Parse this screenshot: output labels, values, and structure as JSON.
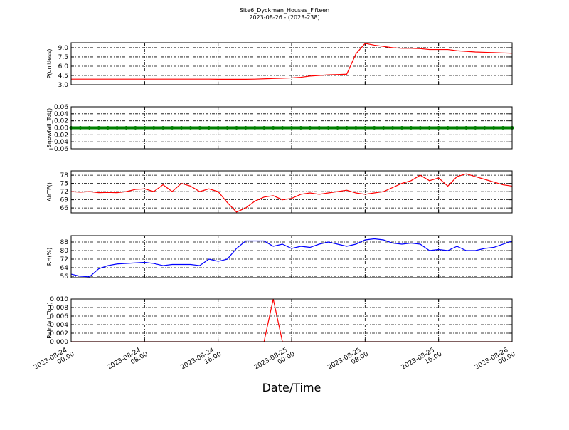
{
  "title": "Site6_Dyckman_Houses_Fifteen",
  "subtitle": "2023-08-26 - (2023-238)",
  "xlabel": "Date/Time",
  "chart_data": [
    {
      "type": "line",
      "ylabel": "P(unitless)",
      "x": [
        "2023-08-24 00:00",
        "2023-08-24 01:00",
        "2023-08-24 02:00",
        "2023-08-24 03:00",
        "2023-08-24 04:00",
        "2023-08-24 05:00",
        "2023-08-24 06:00",
        "2023-08-24 07:00",
        "2023-08-24 08:00",
        "2023-08-24 09:00",
        "2023-08-24 10:00",
        "2023-08-24 11:00",
        "2023-08-24 12:00",
        "2023-08-24 13:00",
        "2023-08-24 14:00",
        "2023-08-24 15:00",
        "2023-08-24 16:00",
        "2023-08-24 17:00",
        "2023-08-24 18:00",
        "2023-08-24 19:00",
        "2023-08-24 20:00",
        "2023-08-24 21:00",
        "2023-08-24 22:00",
        "2023-08-24 23:00",
        "2023-08-25 00:00",
        "2023-08-25 01:00",
        "2023-08-25 02:00",
        "2023-08-25 03:00",
        "2023-08-25 04:00",
        "2023-08-25 05:00",
        "2023-08-25 06:00",
        "2023-08-25 07:00",
        "2023-08-25 08:00",
        "2023-08-25 09:00",
        "2023-08-25 10:00",
        "2023-08-25 11:00",
        "2023-08-25 12:00",
        "2023-08-25 13:00",
        "2023-08-25 14:00",
        "2023-08-25 15:00",
        "2023-08-25 16:00",
        "2023-08-25 17:00",
        "2023-08-25 18:00",
        "2023-08-25 19:00",
        "2023-08-25 20:00",
        "2023-08-25 21:00",
        "2023-08-25 22:00",
        "2023-08-25 23:00",
        "2023-08-26 00:00"
      ],
      "series": [
        {
          "color": "#ff0000",
          "values": [
            3.9,
            3.9,
            3.9,
            3.9,
            3.9,
            3.9,
            3.9,
            3.9,
            3.9,
            3.9,
            3.9,
            3.9,
            3.9,
            3.9,
            3.9,
            3.9,
            3.88,
            3.88,
            3.88,
            3.88,
            3.9,
            3.95,
            4.0,
            4.05,
            4.1,
            4.2,
            4.4,
            4.5,
            4.6,
            4.65,
            4.7,
            8.0,
            9.7,
            9.4,
            9.2,
            9.0,
            8.9,
            8.9,
            8.85,
            8.7,
            8.7,
            8.7,
            8.5,
            8.4,
            8.3,
            8.25,
            8.2,
            8.15,
            8.1
          ]
        }
      ],
      "xlim": [
        "2023-08-24 00:00",
        "2023-08-26 00:00"
      ],
      "xticks": [
        "2023-08-24 00:00",
        "2023-08-24 08:00",
        "2023-08-24 16:00",
        "2023-08-25 00:00",
        "2023-08-25 08:00",
        "2023-08-25 16:00",
        "2023-08-26 00:00"
      ],
      "ylim": [
        3.0,
        9.8
      ],
      "yticks": [
        {
          "value": 3,
          "label": "3.0"
        },
        {
          "value": 4.5,
          "label": "4.5"
        },
        {
          "value": 6,
          "label": "6.0"
        },
        {
          "value": 7.5,
          "label": "7.5"
        },
        {
          "value": 9,
          "label": "9.0"
        }
      ],
      "grid": true
    },
    {
      "type": "line",
      "ylabel": "Snowfall_Tot()",
      "marker": true,
      "x": [
        "2023-08-24 00:00",
        "2023-08-24 01:00",
        "2023-08-24 02:00",
        "2023-08-24 03:00",
        "2023-08-24 04:00",
        "2023-08-24 05:00",
        "2023-08-24 06:00",
        "2023-08-24 07:00",
        "2023-08-24 08:00",
        "2023-08-24 09:00",
        "2023-08-24 10:00",
        "2023-08-24 11:00",
        "2023-08-24 12:00",
        "2023-08-24 13:00",
        "2023-08-24 14:00",
        "2023-08-24 15:00",
        "2023-08-24 16:00",
        "2023-08-24 17:00",
        "2023-08-24 18:00",
        "2023-08-24 19:00",
        "2023-08-24 20:00",
        "2023-08-24 21:00",
        "2023-08-24 22:00",
        "2023-08-24 23:00",
        "2023-08-25 00:00",
        "2023-08-25 01:00",
        "2023-08-25 02:00",
        "2023-08-25 03:00",
        "2023-08-25 04:00",
        "2023-08-25 05:00",
        "2023-08-25 06:00",
        "2023-08-25 07:00",
        "2023-08-25 08:00",
        "2023-08-25 09:00",
        "2023-08-25 10:00",
        "2023-08-25 11:00",
        "2023-08-25 12:00",
        "2023-08-25 13:00",
        "2023-08-25 14:00",
        "2023-08-25 15:00",
        "2023-08-25 16:00",
        "2023-08-25 17:00",
        "2023-08-25 18:00",
        "2023-08-25 19:00",
        "2023-08-25 20:00",
        "2023-08-25 21:00",
        "2023-08-25 22:00",
        "2023-08-25 23:00",
        "2023-08-26 00:00"
      ],
      "series": [
        {
          "color": "#008000",
          "values": [
            0,
            0,
            0,
            0,
            0,
            0,
            0,
            0,
            0,
            0,
            0,
            0,
            0,
            0,
            0,
            0,
            0,
            0,
            0,
            0,
            0,
            0,
            0,
            0,
            0,
            0,
            0,
            0,
            0,
            0,
            0,
            0,
            0,
            0,
            0,
            0,
            0,
            0,
            0,
            0,
            0,
            0,
            0,
            0,
            0,
            0,
            0,
            0,
            0
          ]
        }
      ],
      "xlim": [
        "2023-08-24 00:00",
        "2023-08-26 00:00"
      ],
      "xticks": [
        "2023-08-24 00:00",
        "2023-08-24 08:00",
        "2023-08-24 16:00",
        "2023-08-25 00:00",
        "2023-08-25 08:00",
        "2023-08-25 16:00",
        "2023-08-26 00:00"
      ],
      "ylim": [
        -0.06,
        0.06
      ],
      "yticks": [
        {
          "value": -0.06,
          "label": "−0.06"
        },
        {
          "value": -0.04,
          "label": "−0.04"
        },
        {
          "value": -0.02,
          "label": "−0.02"
        },
        {
          "value": 0,
          "label": "0.00"
        },
        {
          "value": 0.02,
          "label": "0.02"
        },
        {
          "value": 0.04,
          "label": "0.04"
        },
        {
          "value": 0.06,
          "label": "0.06"
        }
      ],
      "grid": true
    },
    {
      "type": "line",
      "ylabel": "AirTF()",
      "x": [
        "2023-08-24 00:00",
        "2023-08-24 01:00",
        "2023-08-24 02:00",
        "2023-08-24 03:00",
        "2023-08-24 04:00",
        "2023-08-24 05:00",
        "2023-08-24 06:00",
        "2023-08-24 07:00",
        "2023-08-24 08:00",
        "2023-08-24 09:00",
        "2023-08-24 10:00",
        "2023-08-24 11:00",
        "2023-08-24 12:00",
        "2023-08-24 13:00",
        "2023-08-24 14:00",
        "2023-08-24 15:00",
        "2023-08-24 16:00",
        "2023-08-24 17:00",
        "2023-08-24 18:00",
        "2023-08-24 19:00",
        "2023-08-24 20:00",
        "2023-08-24 21:00",
        "2023-08-24 22:00",
        "2023-08-24 23:00",
        "2023-08-25 00:00",
        "2023-08-25 01:00",
        "2023-08-25 02:00",
        "2023-08-25 03:00",
        "2023-08-25 04:00",
        "2023-08-25 05:00",
        "2023-08-25 06:00",
        "2023-08-25 07:00",
        "2023-08-25 08:00",
        "2023-08-25 09:00",
        "2023-08-25 10:00",
        "2023-08-25 11:00",
        "2023-08-25 12:00",
        "2023-08-25 13:00",
        "2023-08-25 14:00",
        "2023-08-25 15:00",
        "2023-08-25 16:00",
        "2023-08-25 17:00",
        "2023-08-25 18:00",
        "2023-08-25 19:00",
        "2023-08-25 20:00",
        "2023-08-25 21:00",
        "2023-08-25 22:00",
        "2023-08-25 23:00",
        "2023-08-26 00:00"
      ],
      "series": [
        {
          "color": "#ff0000",
          "values": [
            72.0,
            71.8,
            72.0,
            71.6,
            71.7,
            71.6,
            72.0,
            72.8,
            73.0,
            72.0,
            74.5,
            72.0,
            75.0,
            74.0,
            72.0,
            73.0,
            72.0,
            68.0,
            64.5,
            66.0,
            68.5,
            70.0,
            70.5,
            69.0,
            69.5,
            71.0,
            71.5,
            71.0,
            71.5,
            72.0,
            72.5,
            71.5,
            71.0,
            71.5,
            72.0,
            73.5,
            75.0,
            76.0,
            78.0,
            76.0,
            77.0,
            74.0,
            77.5,
            78.5,
            77.5,
            76.5,
            75.5,
            74.5,
            74.0
          ]
        }
      ],
      "xlim": [
        "2023-08-24 00:00",
        "2023-08-26 00:00"
      ],
      "xticks": [
        "2023-08-24 00:00",
        "2023-08-24 08:00",
        "2023-08-24 16:00",
        "2023-08-25 00:00",
        "2023-08-25 08:00",
        "2023-08-25 16:00",
        "2023-08-26 00:00"
      ],
      "ylim": [
        64.2,
        79.6
      ],
      "yticks": [
        66,
        69,
        72,
        75,
        78
      ],
      "grid": true
    },
    {
      "type": "line",
      "ylabel": "RH(%)",
      "x": [
        "2023-08-24 00:00",
        "2023-08-24 01:00",
        "2023-08-24 02:00",
        "2023-08-24 03:00",
        "2023-08-24 04:00",
        "2023-08-24 05:00",
        "2023-08-24 06:00",
        "2023-08-24 07:00",
        "2023-08-24 08:00",
        "2023-08-24 09:00",
        "2023-08-24 10:00",
        "2023-08-24 11:00",
        "2023-08-24 12:00",
        "2023-08-24 13:00",
        "2023-08-24 14:00",
        "2023-08-24 15:00",
        "2023-08-24 16:00",
        "2023-08-24 17:00",
        "2023-08-24 18:00",
        "2023-08-24 19:00",
        "2023-08-24 20:00",
        "2023-08-24 21:00",
        "2023-08-24 22:00",
        "2023-08-24 23:00",
        "2023-08-25 00:00",
        "2023-08-25 01:00",
        "2023-08-25 02:00",
        "2023-08-25 03:00",
        "2023-08-25 04:00",
        "2023-08-25 05:00",
        "2023-08-25 06:00",
        "2023-08-25 07:00",
        "2023-08-25 08:00",
        "2023-08-25 09:00",
        "2023-08-25 10:00",
        "2023-08-25 11:00",
        "2023-08-25 12:00",
        "2023-08-25 13:00",
        "2023-08-25 14:00",
        "2023-08-25 15:00",
        "2023-08-25 16:00",
        "2023-08-25 17:00",
        "2023-08-25 18:00",
        "2023-08-25 19:00",
        "2023-08-25 20:00",
        "2023-08-25 21:00",
        "2023-08-25 22:00",
        "2023-08-25 23:00",
        "2023-08-26 00:00"
      ],
      "series": [
        {
          "color": "#0000ff",
          "values": [
            58,
            56,
            55.5,
            63,
            66,
            67.5,
            68,
            68.5,
            69,
            68,
            66,
            67,
            67,
            67,
            66,
            72,
            70,
            72,
            82,
            89,
            89,
            89,
            84,
            86,
            82,
            84,
            83,
            86,
            88,
            86,
            84,
            86,
            90,
            91,
            90,
            87,
            86,
            87,
            86,
            80,
            81,
            80,
            84,
            80,
            80,
            82,
            83,
            86,
            89
          ]
        }
      ],
      "xlim": [
        "2023-08-24 00:00",
        "2023-08-26 00:00"
      ],
      "xticks": [
        "2023-08-24 00:00",
        "2023-08-24 08:00",
        "2023-08-24 16:00",
        "2023-08-25 00:00",
        "2023-08-25 08:00",
        "2023-08-25 16:00",
        "2023-08-26 00:00"
      ],
      "ylim": [
        54.7,
        94
      ],
      "yticks": [
        56,
        64,
        72,
        80,
        88
      ],
      "grid": true
    },
    {
      "type": "line",
      "ylabel": "Rainfall_Tot()",
      "x": [
        "2023-08-24 00:00",
        "2023-08-24 01:00",
        "2023-08-24 02:00",
        "2023-08-24 03:00",
        "2023-08-24 04:00",
        "2023-08-24 05:00",
        "2023-08-24 06:00",
        "2023-08-24 07:00",
        "2023-08-24 08:00",
        "2023-08-24 09:00",
        "2023-08-24 10:00",
        "2023-08-24 11:00",
        "2023-08-24 12:00",
        "2023-08-24 13:00",
        "2023-08-24 14:00",
        "2023-08-24 15:00",
        "2023-08-24 16:00",
        "2023-08-24 17:00",
        "2023-08-24 18:00",
        "2023-08-24 19:00",
        "2023-08-24 20:00",
        "2023-08-24 21:00",
        "2023-08-24 22:00",
        "2023-08-24 23:00",
        "2023-08-25 00:00",
        "2023-08-25 01:00",
        "2023-08-25 02:00",
        "2023-08-25 03:00",
        "2023-08-25 04:00",
        "2023-08-25 05:00",
        "2023-08-25 06:00",
        "2023-08-25 07:00",
        "2023-08-25 08:00",
        "2023-08-25 09:00",
        "2023-08-25 10:00",
        "2023-08-25 11:00",
        "2023-08-25 12:00",
        "2023-08-25 13:00",
        "2023-08-25 14:00",
        "2023-08-25 15:00",
        "2023-08-25 16:00",
        "2023-08-25 17:00",
        "2023-08-25 18:00",
        "2023-08-25 19:00",
        "2023-08-25 20:00",
        "2023-08-25 21:00",
        "2023-08-25 22:00",
        "2023-08-25 23:00",
        "2023-08-26 00:00"
      ],
      "series": [
        {
          "color": "#ff0000",
          "values": [
            0,
            0,
            0,
            0,
            0,
            0,
            0,
            0,
            0,
            0,
            0,
            0,
            0,
            0,
            0,
            0,
            0,
            0,
            0,
            0,
            0,
            0,
            0.01,
            0,
            0,
            0,
            0,
            0,
            0,
            0,
            0,
            0,
            0,
            0,
            0,
            0,
            0,
            0,
            0,
            0,
            0,
            0,
            0,
            0,
            0,
            0,
            0,
            0,
            0
          ]
        }
      ],
      "xlim": [
        "2023-08-24 00:00",
        "2023-08-26 00:00"
      ],
      "xticks": [
        {
          "value": "2023-08-24 00:00",
          "label": "2023-08-24\n00:00"
        },
        {
          "value": "2023-08-24 08:00",
          "label": "2023-08-24\n08:00"
        },
        {
          "value": "2023-08-24 16:00",
          "label": "2023-08-24\n16:00"
        },
        {
          "value": "2023-08-25 00:00",
          "label": "2023-08-25\n00:00"
        },
        {
          "value": "2023-08-25 08:00",
          "label": "2023-08-25\n08:00"
        },
        {
          "value": "2023-08-25 16:00",
          "label": "2023-08-25\n16:00"
        },
        {
          "value": "2023-08-26 00:00",
          "label": "2023-08-26\n00:00"
        }
      ],
      "ylim": [
        0,
        0.01
      ],
      "yticks": [
        {
          "value": 0,
          "label": "0.000"
        },
        {
          "value": 0.002,
          "label": "0.002"
        },
        {
          "value": 0.004,
          "label": "0.004"
        },
        {
          "value": 0.006,
          "label": "0.006"
        },
        {
          "value": 0.008,
          "label": "0.008"
        },
        {
          "value": 0.01,
          "label": "0.010"
        }
      ],
      "grid": true
    }
  ]
}
